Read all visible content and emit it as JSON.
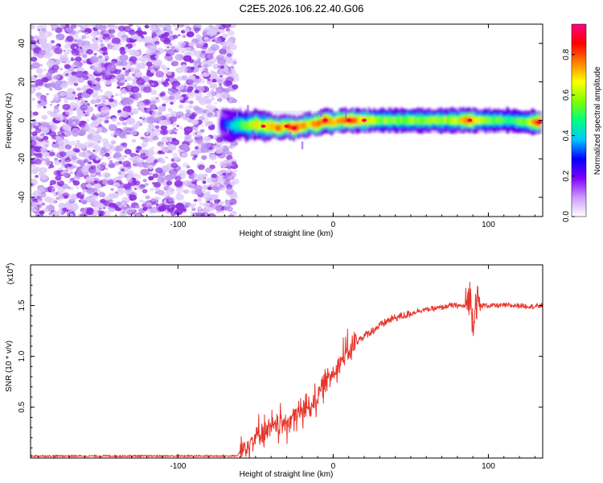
{
  "title": "C2E5.2026.106.22.40.G06",
  "chart_data": [
    {
      "type": "heatmap",
      "xlabel": "Height of straight line (km)",
      "ylabel": "Frequency (Hz)",
      "xlim": [
        -195,
        135
      ],
      "ylim": [
        -50,
        50
      ],
      "xticks": [
        -100,
        0,
        100
      ],
      "yticks": [
        -40,
        -20,
        0,
        20,
        40
      ],
      "noise_region_x": [
        -195,
        -65
      ],
      "ridge": [
        {
          "x": -72,
          "y": -2,
          "amp": 0.25
        },
        {
          "x": -65,
          "y": -3,
          "amp": 0.4
        },
        {
          "x": -60,
          "y": -2,
          "amp": 0.5
        },
        {
          "x": -55,
          "y": -3,
          "amp": 0.6
        },
        {
          "x": -50,
          "y": -2,
          "amp": 0.7
        },
        {
          "x": -45,
          "y": -3,
          "amp": 0.65
        },
        {
          "x": -40,
          "y": -3,
          "amp": 0.75
        },
        {
          "x": -35,
          "y": -4,
          "amp": 0.85
        },
        {
          "x": -30,
          "y": -3,
          "amp": 0.75
        },
        {
          "x": -25,
          "y": -4,
          "amp": 0.9
        },
        {
          "x": -20,
          "y": -3,
          "amp": 0.8
        },
        {
          "x": -15,
          "y": -2,
          "amp": 0.7
        },
        {
          "x": -10,
          "y": -2,
          "amp": 0.85
        },
        {
          "x": -5,
          "y": 0,
          "amp": 0.9
        },
        {
          "x": 0,
          "y": -1,
          "amp": 0.75
        },
        {
          "x": 5,
          "y": 0,
          "amp": 0.8
        },
        {
          "x": 10,
          "y": 0,
          "amp": 0.85
        },
        {
          "x": 20,
          "y": 0,
          "amp": 0.75
        },
        {
          "x": 30,
          "y": 0,
          "amp": 0.6
        },
        {
          "x": 40,
          "y": 0,
          "amp": 0.6
        },
        {
          "x": 50,
          "y": 0,
          "amp": 0.6
        },
        {
          "x": 60,
          "y": 0,
          "amp": 0.62
        },
        {
          "x": 70,
          "y": 0,
          "amp": 0.6
        },
        {
          "x": 80,
          "y": 0,
          "amp": 0.65
        },
        {
          "x": 88,
          "y": 0,
          "amp": 0.85
        },
        {
          "x": 95,
          "y": 0,
          "amp": 0.6
        },
        {
          "x": 105,
          "y": 0,
          "amp": 0.55
        },
        {
          "x": 115,
          "y": 0,
          "amp": 0.5
        },
        {
          "x": 125,
          "y": -1,
          "amp": 0.6
        },
        {
          "x": 133,
          "y": -1,
          "amp": 0.9
        }
      ],
      "colorbar": {
        "label": "Normalized spectral amplitude",
        "range": [
          0,
          0.95
        ],
        "ticks": [
          "0.0",
          "0.2",
          "0.4",
          "0.6",
          "0.8"
        ],
        "tick_values": [
          0,
          0.2,
          0.4,
          0.6,
          0.8
        ],
        "colors": [
          "#ffffff",
          "#cc99ff",
          "#8000ff",
          "#0000ff",
          "#00c8ff",
          "#00ff80",
          "#80ff00",
          "#ffff00",
          "#ff8000",
          "#ff0000",
          "#ff0080"
        ]
      }
    },
    {
      "type": "line",
      "xlabel": "Height of straight line (km)",
      "ylabel": "SNR (10 * v/v)",
      "multiplier_label": "(x10",
      "multiplier_exp": "4",
      "xlim": [
        -195,
        135
      ],
      "ylim": [
        0,
        1.9
      ],
      "xticks": [
        -100,
        0,
        100
      ],
      "yticks": [
        0.5,
        1.0,
        1.5
      ],
      "ytick_labels": [
        "0.5",
        "1.0",
        "1.5"
      ],
      "color": "#e8352b",
      "series": [
        {
          "x": [
            -195,
            -150,
            -100,
            -70,
            -62,
            -58,
            -55,
            -50,
            -45,
            -40,
            -35,
            -30,
            -25,
            -20,
            -15,
            -10,
            -5,
            0,
            5,
            10,
            15,
            20,
            25,
            30,
            35,
            40,
            45,
            50,
            55,
            60,
            65,
            70,
            75,
            80,
            85,
            88,
            90,
            92,
            95,
            100,
            110,
            120,
            130,
            135
          ],
          "y": [
            0.02,
            0.02,
            0.02,
            0.02,
            0.02,
            0.1,
            0.15,
            0.2,
            0.27,
            0.28,
            0.33,
            0.35,
            0.42,
            0.45,
            0.52,
            0.6,
            0.75,
            0.85,
            0.95,
            1.05,
            1.15,
            1.2,
            1.25,
            1.3,
            1.35,
            1.38,
            1.4,
            1.42,
            1.45,
            1.46,
            1.47,
            1.48,
            1.5,
            1.5,
            1.49,
            1.6,
            1.35,
            1.55,
            1.5,
            1.5,
            1.5,
            1.5,
            1.49,
            1.5
          ]
        }
      ]
    }
  ]
}
